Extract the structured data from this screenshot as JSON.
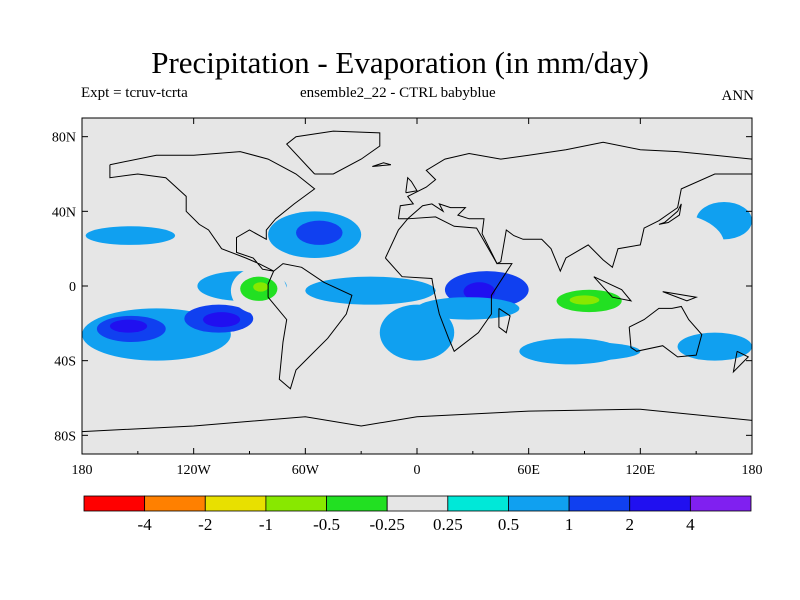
{
  "chart_data": {
    "type": "heatmap",
    "title": "Precipitation - Evaporation (in mm/day)",
    "subtitle_left": "Expt = tcruv-tcrta",
    "subtitle_center": "ensemble2_22 - CTRL babyblue",
    "subtitle_right": "ANN",
    "xlim": [
      -180,
      180
    ],
    "ylim": [
      -90,
      90
    ],
    "x_ticks": [
      {
        "value": -180,
        "label": "180"
      },
      {
        "value": -120,
        "label": "120W"
      },
      {
        "value": -60,
        "label": "60W"
      },
      {
        "value": 0,
        "label": "0"
      },
      {
        "value": 60,
        "label": "60E"
      },
      {
        "value": 120,
        "label": "120E"
      },
      {
        "value": 180,
        "label": "180"
      }
    ],
    "y_ticks": [
      {
        "value": 80,
        "label": "80N"
      },
      {
        "value": 40,
        "label": "40N"
      },
      {
        "value": 0,
        "label": "0"
      },
      {
        "value": -40,
        "label": "40S"
      },
      {
        "value": -80,
        "label": "80S"
      }
    ],
    "colorbar": {
      "levels": [
        "-4",
        "-2",
        "-1",
        "-0.5",
        "-0.25",
        "0.25",
        "0.5",
        "1",
        "2",
        "4"
      ],
      "colors": [
        "#ff0000",
        "#ff8000",
        "#e8e000",
        "#88e800",
        "#22e022",
        "#e6e6e6",
        "#00e8d8",
        "#10a0f0",
        "#1040f0",
        "#2010f0",
        "#8020f0"
      ]
    },
    "regions": [
      {
        "level": "0.5",
        "lon": [
          -180,
          -100
        ],
        "lat": [
          -40,
          -12
        ]
      },
      {
        "level": "1",
        "lon": [
          -172,
          -135
        ],
        "lat": [
          -30,
          -16
        ]
      },
      {
        "level": "2",
        "lon": [
          -165,
          -145
        ],
        "lat": [
          -25,
          -18
        ]
      },
      {
        "level": "1",
        "lon": [
          -125,
          -88
        ],
        "lat": [
          -25,
          -10
        ]
      },
      {
        "level": "2",
        "lon": [
          -115,
          -95
        ],
        "lat": [
          -22,
          -14
        ]
      },
      {
        "level": "0.5",
        "lon": [
          -178,
          -130
        ],
        "lat": [
          22,
          32
        ]
      },
      {
        "level": "0.5",
        "lon": [
          -118,
          -70
        ],
        "lat": [
          -8,
          8
        ]
      },
      {
        "level": "0.5",
        "lon": [
          -80,
          -30
        ],
        "lat": [
          15,
          40
        ]
      },
      {
        "level": "1",
        "lon": [
          -65,
          -40
        ],
        "lat": [
          22,
          35
        ]
      },
      {
        "level": "0.5",
        "lon": [
          -60,
          10
        ],
        "lat": [
          -10,
          5
        ]
      },
      {
        "level": "0.5",
        "lon": [
          -20,
          20
        ],
        "lat": [
          -40,
          -10
        ]
      },
      {
        "level": "0.5",
        "lon": [
          55,
          110
        ],
        "lat": [
          -42,
          -28
        ]
      },
      {
        "level": "1",
        "lon": [
          15,
          60
        ],
        "lat": [
          -12,
          8
        ]
      },
      {
        "level": "2",
        "lon": [
          25,
          42
        ],
        "lat": [
          -8,
          2
        ]
      },
      {
        "level": "0.5",
        "lon": [
          0,
          55
        ],
        "lat": [
          -18,
          -6
        ]
      },
      {
        "level": "0.5",
        "lon": [
          140,
          180
        ],
        "lat": [
          -40,
          -25
        ]
      },
      {
        "level": "0.5",
        "lon": [
          150,
          180
        ],
        "lat": [
          25,
          45
        ]
      },
      {
        "level": "0.5",
        "lon": [
          60,
          120
        ],
        "lat": [
          -40,
          -30
        ]
      },
      {
        "level": "-0.25",
        "lon": [
          -180,
          -120
        ],
        "lat": [
          -70,
          -58
        ]
      },
      {
        "level": "-0.25",
        "lon": [
          90,
          180
        ],
        "lat": [
          -65,
          -52
        ]
      },
      {
        "level": "-0.25",
        "lon": [
          -45,
          40
        ],
        "lat": [
          60,
          80
        ]
      },
      {
        "level": "-0.25",
        "lon": [
          -100,
          -70
        ],
        "lat": [
          -15,
          10
        ]
      },
      {
        "level": "-0.5",
        "lon": [
          -95,
          -75
        ],
        "lat": [
          -8,
          5
        ]
      },
      {
        "level": "-1",
        "lon": [
          -88,
          -80
        ],
        "lat": [
          -3,
          2
        ]
      },
      {
        "level": "-0.25",
        "lon": [
          -70,
          -40
        ],
        "lat": [
          -30,
          -10
        ]
      },
      {
        "level": "-0.25",
        "lon": [
          -30,
          30
        ],
        "lat": [
          5,
          15
        ]
      },
      {
        "level": "-0.25",
        "lon": [
          60,
          180
        ],
        "lat": [
          -25,
          0
        ]
      },
      {
        "level": "-0.5",
        "lon": [
          75,
          110
        ],
        "lat": [
          -14,
          -2
        ]
      },
      {
        "level": "-1",
        "lon": [
          82,
          98
        ],
        "lat": [
          -10,
          -5
        ]
      },
      {
        "level": "-0.25",
        "lon": [
          95,
          165
        ],
        "lat": [
          5,
          40
        ]
      },
      {
        "level": "-0.25",
        "lon": [
          -180,
          -150
        ],
        "lat": [
          -55,
          -45
        ]
      },
      {
        "level": "-0.25",
        "lon": [
          -100,
          -80
        ],
        "lat": [
          25,
          35
        ]
      },
      {
        "level": "-0.25",
        "lon": [
          -60,
          -45
        ],
        "lat": [
          -50,
          -40
        ]
      }
    ]
  }
}
